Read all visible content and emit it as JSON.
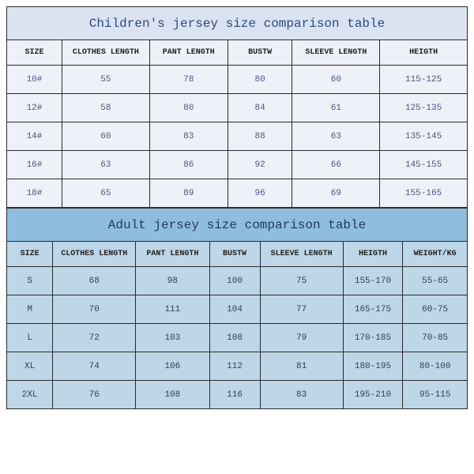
{
  "children": {
    "title": "Children's jersey size comparison table",
    "columns": [
      "SIZE",
      "CLOTHES LENGTH",
      "PANT LENGTH",
      "BUSTW",
      "SLEEVE LENGTH",
      "HEIGTH"
    ],
    "col_widths_pct": [
      12,
      19,
      17,
      14,
      19,
      19
    ],
    "rows": [
      [
        "10#",
        "55",
        "78",
        "80",
        "60",
        "115-125"
      ],
      [
        "12#",
        "58",
        "80",
        "84",
        "61",
        "125-135"
      ],
      [
        "14#",
        "60",
        "83",
        "88",
        "63",
        "135-145"
      ],
      [
        "16#",
        "63",
        "86",
        "92",
        "66",
        "145-155"
      ],
      [
        "18#",
        "65",
        "89",
        "96",
        "69",
        "155-165"
      ]
    ],
    "title_bg": "#dbe2f2",
    "cell_bg": "#eef1f8",
    "title_color": "#2c4a7a",
    "cell_color": "#4a5680",
    "border_color": "#2b2b2b",
    "font_family": "Courier New",
    "title_fontsize": 16,
    "header_fontsize": 10,
    "cell_fontsize": 11
  },
  "adult": {
    "title": "Adult jersey size comparison table",
    "columns": [
      "SIZE",
      "CLOTHES LENGTH",
      "PANT LENGTH",
      "BUSTW",
      "SLEEVE LENGTH",
      "HEIGTH",
      "WEIGHT/KG"
    ],
    "col_widths_pct": [
      10,
      18,
      16,
      11,
      18,
      13,
      14
    ],
    "rows": [
      [
        "S",
        "68",
        "98",
        "100",
        "75",
        "155-170",
        "55-65"
      ],
      [
        "M",
        "70",
        "111",
        "104",
        "77",
        "165-175",
        "60-75"
      ],
      [
        "L",
        "72",
        "103",
        "108",
        "79",
        "170-185",
        "70-85"
      ],
      [
        "XL",
        "74",
        "106",
        "112",
        "81",
        "180-195",
        "80-100"
      ],
      [
        "2XL",
        "76",
        "108",
        "116",
        "83",
        "195-210",
        "95-115"
      ]
    ],
    "title_bg": "#8fbddd",
    "cell_bg": "#bdd6e8",
    "title_color": "#1e3a57",
    "cell_color": "#2d3f56",
    "border_color": "#2b2b2b",
    "font_family": "Courier New",
    "title_fontsize": 16,
    "header_fontsize": 10,
    "cell_fontsize": 11
  }
}
